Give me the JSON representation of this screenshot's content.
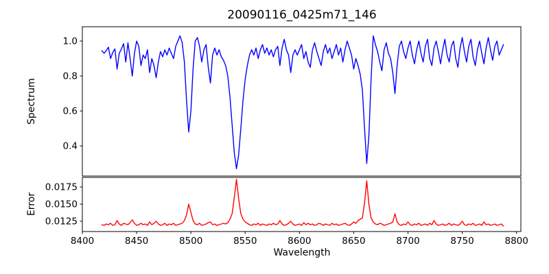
{
  "figure": {
    "background": "#ffffff",
    "spine_color": "#000000",
    "text_color": "#000000"
  },
  "chart_data": {
    "type": "line",
    "title": "20090116_0425m71_146",
    "xlabel": "Wavelength",
    "grid": false,
    "legend": null,
    "x_start": 8418,
    "x_step": 2,
    "xlim": [
      8400,
      8804
    ],
    "xticks": [
      8400,
      8450,
      8500,
      8550,
      8600,
      8650,
      8700,
      8750,
      8800
    ],
    "xtick_labels": [
      "8400",
      "8450",
      "8500",
      "8550",
      "8600",
      "8650",
      "8700",
      "8750",
      "8800"
    ],
    "panels": [
      {
        "name": "spectrum",
        "ylabel": "Spectrum",
        "color": "#0000ff",
        "ylim": [
          0.228,
          1.082
        ],
        "yticks": [
          0.4,
          0.6,
          0.8,
          1.0
        ],
        "ytick_labels": [
          "0.4",
          "0.6",
          "0.8",
          "1.0"
        ],
        "values": [
          0.945,
          0.93,
          0.945,
          0.965,
          0.9,
          0.935,
          0.955,
          0.84,
          0.93,
          0.955,
          0.985,
          0.88,
          0.99,
          0.9,
          0.8,
          0.93,
          1.0,
          0.97,
          0.86,
          0.92,
          0.9,
          0.95,
          0.82,
          0.9,
          0.86,
          0.79,
          0.88,
          0.94,
          0.91,
          0.95,
          0.92,
          0.96,
          0.93,
          0.9,
          0.97,
          1.0,
          1.03,
          0.99,
          0.88,
          0.66,
          0.48,
          0.6,
          0.84,
          1.0,
          1.02,
          0.97,
          0.88,
          0.95,
          0.98,
          0.85,
          0.76,
          0.92,
          0.96,
          0.92,
          0.95,
          0.91,
          0.89,
          0.86,
          0.8,
          0.68,
          0.52,
          0.36,
          0.27,
          0.35,
          0.5,
          0.66,
          0.78,
          0.86,
          0.92,
          0.95,
          0.92,
          0.96,
          0.9,
          0.95,
          0.98,
          0.93,
          0.96,
          0.92,
          0.95,
          0.91,
          0.95,
          0.97,
          0.86,
          0.96,
          1.01,
          0.95,
          0.92,
          0.82,
          0.92,
          0.95,
          0.92,
          0.95,
          0.98,
          0.9,
          0.94,
          0.88,
          0.85,
          0.95,
          0.99,
          0.94,
          0.9,
          0.86,
          0.94,
          0.98,
          0.93,
          0.96,
          0.9,
          0.94,
          0.98,
          0.92,
          0.96,
          0.88,
          0.95,
          1.0,
          0.96,
          0.92,
          0.84,
          0.9,
          0.86,
          0.81,
          0.72,
          0.5,
          0.3,
          0.46,
          0.78,
          1.03,
          0.98,
          0.94,
          0.88,
          0.83,
          0.95,
          0.99,
          0.93,
          0.9,
          0.82,
          0.7,
          0.86,
          0.97,
          1.0,
          0.94,
          0.9,
          0.96,
          1.0,
          0.92,
          0.87,
          0.95,
          1.0,
          0.93,
          0.88,
          0.97,
          1.01,
          0.9,
          0.86,
          0.96,
          1.0,
          0.94,
          0.87,
          0.95,
          1.01,
          0.92,
          0.88,
          0.97,
          1.0,
          0.9,
          0.85,
          0.96,
          1.02,
          0.94,
          0.88,
          0.97,
          1.01,
          0.91,
          0.86,
          0.95,
          1.0,
          0.93,
          0.87,
          0.96,
          1.02,
          0.95,
          0.89,
          0.97,
          1.0,
          0.92,
          0.95,
          0.98
        ]
      },
      {
        "name": "error",
        "ylabel": "Error",
        "color": "#ff0000",
        "ylim": [
          0.011,
          0.0189
        ],
        "yticks": [
          0.0125,
          0.015,
          0.0175
        ],
        "ytick_labels": [
          "0.0125",
          "0.0150",
          "0.0175"
        ],
        "values": [
          0.012,
          0.0119,
          0.0121,
          0.012,
          0.0122,
          0.0119,
          0.012,
          0.0126,
          0.0121,
          0.0119,
          0.0122,
          0.0121,
          0.012,
          0.0123,
          0.0127,
          0.0122,
          0.0119,
          0.012,
          0.0122,
          0.012,
          0.0121,
          0.0119,
          0.0124,
          0.012,
          0.0122,
          0.0125,
          0.0121,
          0.0119,
          0.012,
          0.0122,
          0.0119,
          0.0121,
          0.012,
          0.0122,
          0.0119,
          0.012,
          0.0121,
          0.0122,
          0.0126,
          0.0134,
          0.015,
          0.0138,
          0.0126,
          0.0121,
          0.012,
          0.0122,
          0.0119,
          0.012,
          0.0121,
          0.0123,
          0.0124,
          0.012,
          0.0121,
          0.0119,
          0.012,
          0.0121,
          0.0122,
          0.0121,
          0.0123,
          0.0128,
          0.0136,
          0.016,
          0.0186,
          0.0158,
          0.0136,
          0.0128,
          0.0124,
          0.0122,
          0.012,
          0.0119,
          0.0121,
          0.012,
          0.0122,
          0.0119,
          0.0121,
          0.012,
          0.0119,
          0.0121,
          0.012,
          0.0122,
          0.012,
          0.0121,
          0.0126,
          0.0121,
          0.0119,
          0.012,
          0.0122,
          0.0125,
          0.0121,
          0.0119,
          0.012,
          0.0121,
          0.0119,
          0.0123,
          0.012,
          0.0122,
          0.012,
          0.0121,
          0.0119,
          0.012,
          0.0122,
          0.0121,
          0.0119,
          0.0121,
          0.012,
          0.0119,
          0.0122,
          0.012,
          0.0121,
          0.0119,
          0.012,
          0.0121,
          0.0122,
          0.012,
          0.0119,
          0.0121,
          0.0124,
          0.0122,
          0.0126,
          0.0128,
          0.013,
          0.0152,
          0.0184,
          0.015,
          0.013,
          0.0124,
          0.0121,
          0.012,
          0.0122,
          0.0121,
          0.0119,
          0.012,
          0.0121,
          0.0122,
          0.0124,
          0.0136,
          0.0124,
          0.012,
          0.0119,
          0.0121,
          0.012,
          0.0124,
          0.012,
          0.0119,
          0.0121,
          0.012,
          0.0122,
          0.0119,
          0.012,
          0.0121,
          0.0119,
          0.0122,
          0.012,
          0.0126,
          0.0121,
          0.0119,
          0.012,
          0.0121,
          0.0119,
          0.012,
          0.0122,
          0.0119,
          0.0121,
          0.012,
          0.0119,
          0.0121,
          0.0125,
          0.012,
          0.0119,
          0.0121,
          0.012,
          0.0122,
          0.0119,
          0.012,
          0.0121,
          0.0119,
          0.0124,
          0.012,
          0.0121,
          0.0119,
          0.012,
          0.0121,
          0.0119,
          0.012,
          0.0121,
          0.0118
        ]
      }
    ]
  }
}
